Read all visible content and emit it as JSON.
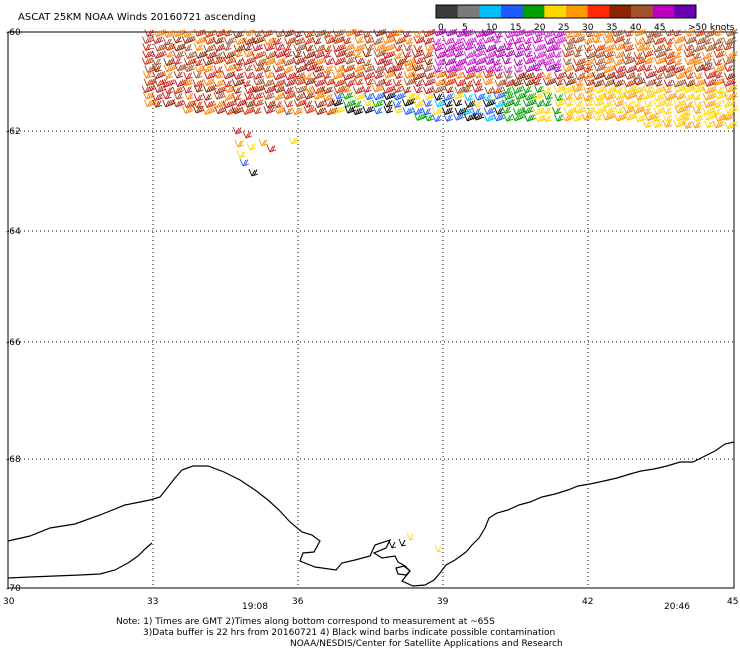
{
  "title": "ASCAT 25KM NOAA Winds 20160721 ascending",
  "legend": {
    "labels": [
      "0",
      "5",
      "10",
      "15",
      "20",
      "25",
      "30",
      "35",
      "40",
      "45",
      ">50 knots"
    ],
    "colors": [
      "#3c3c3c",
      "#7a7a7a",
      "#00bfff",
      "#1e5aff",
      "#00a000",
      "#ffd700",
      "#ff9900",
      "#ff2a00",
      "#8b2500",
      "#a0522d",
      "#c000c0",
      "#6a00b0"
    ]
  },
  "lat_labels": [
    "-60",
    "-62",
    "-64",
    "-66",
    "-68",
    "-70"
  ],
  "lon_labels": [
    "30",
    "33",
    "36",
    "39",
    "42",
    "45"
  ],
  "times": [
    "19:08",
    "20:46"
  ],
  "time_color": "#8a1a9a",
  "notes": [
    "Note: 1) Times are GMT 2)Times along bottom correspond to measurement at ~65S",
    "3)Data buffer is 22 hrs from 20160721 4) Black wind barbs indicate possible contamination",
    "NOAA/NESDIS/Center for Satellite Applications and Research"
  ]
}
